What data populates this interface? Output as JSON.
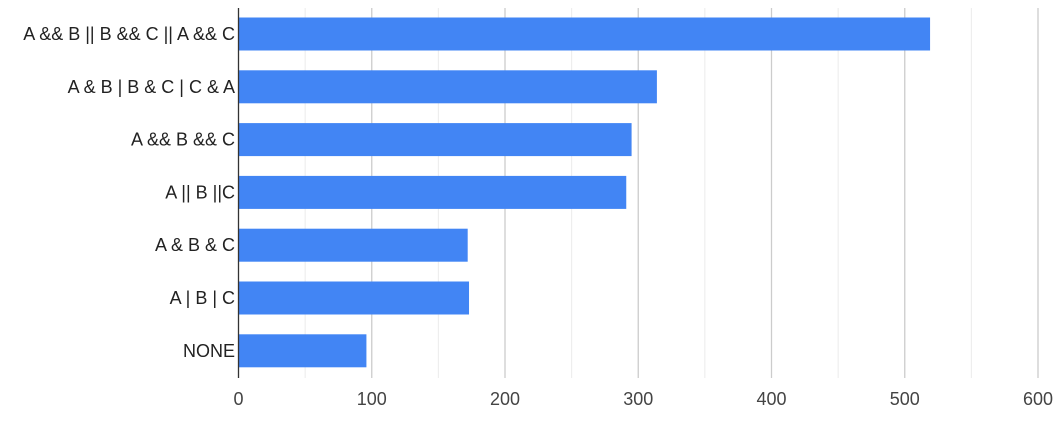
{
  "chart_data": {
    "type": "bar",
    "orientation": "horizontal",
    "categories": [
      "A && B || B && C || A && C",
      "A & B | B & C | C & A",
      "A && B && C",
      "A || B ||C",
      "A & B & C",
      "A | B | C",
      "NONE"
    ],
    "values": [
      519,
      314,
      295,
      291,
      172,
      173,
      96
    ],
    "xlim": [
      0,
      600
    ],
    "xticks": [
      "0",
      "100",
      "200",
      "300",
      "400",
      "500",
      "600"
    ],
    "grid": true,
    "bar_color": "#4285f4",
    "title": "",
    "xlabel": "",
    "ylabel": ""
  }
}
